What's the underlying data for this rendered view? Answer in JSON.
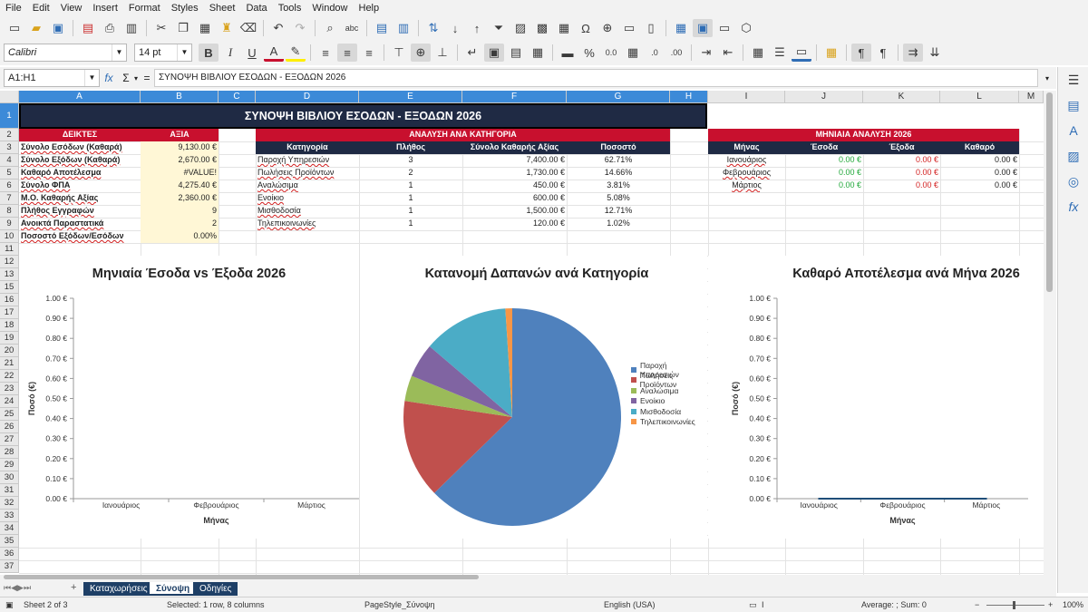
{
  "menu": [
    "File",
    "Edit",
    "View",
    "Insert",
    "Format",
    "Styles",
    "Sheet",
    "Data",
    "Tools",
    "Window",
    "Help"
  ],
  "font": {
    "name": "Calibri",
    "size": "14 pt"
  },
  "name_box": "A1:H1",
  "formula": "ΣΥΝΟΨΗ ΒΙΒΛΙΟΥ ΕΣΟΔΩΝ - ΕΞΟΔΩΝ 2026",
  "columns": [
    "A",
    "B",
    "C",
    "D",
    "E",
    "F",
    "G",
    "H",
    "I",
    "J",
    "K",
    "L",
    "M"
  ],
  "rows": [
    "1",
    "2",
    "3",
    "4",
    "5",
    "6",
    "7",
    "8",
    "9",
    "10",
    "11",
    "12",
    "13",
    "14",
    "15",
    "16",
    "17",
    "18",
    "19",
    "20",
    "21",
    "22",
    "23",
    "24",
    "25",
    "26",
    "27"
  ],
  "visible_row_numbers": [
    "1",
    "2",
    "3",
    "4",
    "5",
    "6",
    "7",
    "8",
    "9",
    "10",
    "11",
    "12",
    "13",
    "15",
    "16",
    "17",
    "18",
    "19",
    "20",
    "21",
    "22",
    "23",
    "24",
    "25",
    "26",
    "27",
    "28",
    "29",
    "30",
    "31",
    "32",
    "33",
    "34",
    "35",
    "36",
    "37"
  ],
  "title": "ΣΥΝΟΨΗ ΒΙΒΛΙΟΥ ΕΣΟΔΩΝ - ΕΞΟΔΩΝ 2026",
  "indicators": {
    "header_label": "ΔΕΙΚΤΕΣ",
    "header_value": "ΑΞΙΑ",
    "rows": [
      {
        "label": "Σύνολο Εσόδων (Καθαρά)",
        "value": "9,130.00 €"
      },
      {
        "label": "Σύνολο Εξόδων (Καθαρά)",
        "value": "2,670.00 €"
      },
      {
        "label": "Καθαρό Αποτέλεσμα",
        "value": "#VALUE!"
      },
      {
        "label": "Σύνολο ΦΠΑ",
        "value": "4,275.40 €"
      },
      {
        "label": "Μ.Ο. Καθαρής Αξίας",
        "value": "2,360.00 €"
      },
      {
        "label": "Πλήθος Εγγραφών",
        "value": "9"
      },
      {
        "label": "Ανοικτά Παραστατικά",
        "value": "2"
      },
      {
        "label": "Ποσοστό Εξόδων/Εσόδων",
        "value": "0.00%"
      }
    ]
  },
  "category": {
    "title": "ΑΝΑΛΥΣΗ ΑΝΑ ΚΑΤΗΓΟΡΙΑ",
    "headers": [
      "Κατηγορία",
      "Πλήθος",
      "Σύνολο Καθαρής Αξίας",
      "Ποσοστό"
    ],
    "rows": [
      [
        "Παροχή Υπηρεσιών",
        "3",
        "7,400.00 €",
        "62.71%"
      ],
      [
        "Πωλήσεις Προϊόντων",
        "2",
        "1,730.00 €",
        "14.66%"
      ],
      [
        "Αναλώσιμα",
        "1",
        "450.00 €",
        "3.81%"
      ],
      [
        "Ενοίκιο",
        "1",
        "600.00 €",
        "5.08%"
      ],
      [
        "Μισθοδοσία",
        "1",
        "1,500.00 €",
        "12.71%"
      ],
      [
        "Τηλεπικοινωνίες",
        "1",
        "120.00 €",
        "1.02%"
      ]
    ]
  },
  "monthly": {
    "title": "ΜΗΝΙΑΙΑ ΑΝΑΛΥΣΗ 2026",
    "headers": [
      "Μήνας",
      "Έσοδα",
      "Έξοδα",
      "Καθαρό"
    ],
    "rows": [
      [
        "Ιανουάριος",
        "0.00 €",
        "0.00 €",
        "0.00 €"
      ],
      [
        "Φεβρουάριος",
        "0.00 €",
        "0.00 €",
        "0.00 €"
      ],
      [
        "Μάρτιος",
        "0.00 €",
        "0.00 €",
        "0.00 €"
      ]
    ]
  },
  "chart_data": [
    {
      "type": "bar",
      "title": "Μηνιαία Έσοδα vs Έξοδα 2026",
      "xlabel": "Μήνας",
      "ylabel": "Ποσό (€)",
      "categories": [
        "Ιανουάριος",
        "Φεβρουάριος",
        "Μάρτιος"
      ],
      "series": [
        {
          "values": [
            0,
            0,
            0
          ]
        },
        {
          "values": [
            0,
            0,
            0
          ]
        }
      ],
      "ylim": [
        0,
        1
      ],
      "yticks": [
        "0.00 €",
        "0.10 €",
        "0.20 €",
        "0.30 €",
        "0.40 €",
        "0.50 €",
        "0.60 €",
        "0.70 €",
        "0.80 €",
        "0.90 €",
        "1.00 €"
      ]
    },
    {
      "type": "pie",
      "title": "Κατανομή Δαπανών ανά Κατηγορία",
      "categories": [
        "Παροχή Υπηρεσιών",
        "Πωλήσεις Προϊόντων",
        "Αναλώσιμα",
        "Ενοίκιο",
        "Μισθοδοσία",
        "Τηλεπικοινωνίες"
      ],
      "values": [
        7400,
        1730,
        450,
        600,
        1500,
        120
      ],
      "colors": [
        "#4f81bd",
        "#c0504d",
        "#9bbb59",
        "#8064a2",
        "#4bacc6",
        "#f79646"
      ],
      "legend": "right"
    },
    {
      "type": "line",
      "title": "Καθαρό Αποτέλεσμα ανά Μήνα 2026",
      "xlabel": "Μήνας",
      "ylabel": "Ποσό (€)",
      "categories": [
        "Ιανουάριος",
        "Φεβρουάριος",
        "Μάρτιος"
      ],
      "values": [
        0,
        0,
        0
      ],
      "ylim": [
        0,
        1
      ],
      "yticks": [
        "0.00 €",
        "0.10 €",
        "0.20 €",
        "0.30 €",
        "0.40 €",
        "0.50 €",
        "0.60 €",
        "0.70 €",
        "0.80 €",
        "0.90 €",
        "1.00 €"
      ]
    }
  ],
  "sheet_tabs": [
    "Καταχωρήσεις",
    "Σύνοψη",
    "Οδηγίες"
  ],
  "status": {
    "sheet": "Sheet 2 of 3",
    "selection": "Selected: 1 row, 8 columns",
    "page_style": "PageStyle_Σύνοψη",
    "language": "English (USA)",
    "summary": "Average: ; Sum: 0",
    "zoom": "100%"
  },
  "colors": {
    "navy": "#1f2a44",
    "red": "#c8102e",
    "green": "#22a83a",
    "negative": "#d21f1f",
    "yellow": "#fff7d6"
  }
}
